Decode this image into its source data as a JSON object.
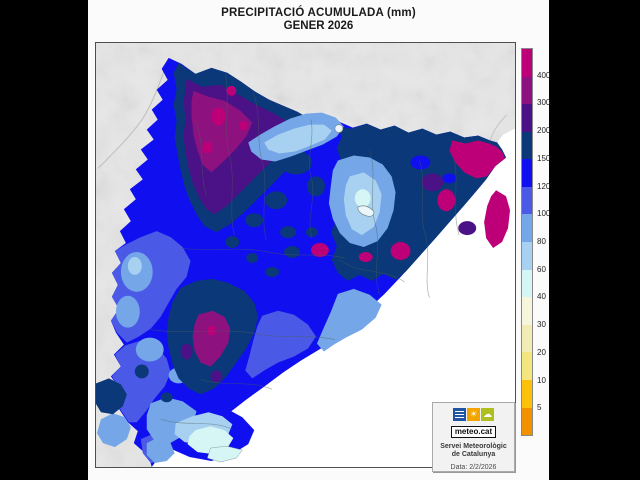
{
  "window": {
    "bg": "#000000",
    "page_bg": "#FBFBFB"
  },
  "title": {
    "line1": "PRECIPITACIÓ ACUMULADA (mm)",
    "line2": "GENER 2026"
  },
  "map": {
    "frame_color": "#4f4f4f",
    "terrain_color": "#E7E7E7",
    "sea_color": "#FFFFFF",
    "admin_border_color": "#4E5E58"
  },
  "legend": {
    "labels": [
      "400",
      "300",
      "200",
      "150",
      "120",
      "100",
      "80",
      "60",
      "40",
      "30",
      "20",
      "10",
      "5"
    ],
    "colors": [
      "#BE0078",
      "#8E1180",
      "#4B1186",
      "#0A3878",
      "#0F0FF0",
      "#4A5AE6",
      "#74A6E8",
      "#A8D0F0",
      "#D5F6F4",
      "#F6F6DC",
      "#F0ECB4",
      "#F4E67E",
      "#FCC108",
      "#F29200"
    ]
  },
  "branding": {
    "logo_text": "meteo.cat",
    "org_line1": "Servei Meteorològic",
    "org_line2": "de Catalunya",
    "date": "Data: 2/2/2026",
    "logo_squares": [
      {
        "icon": "menu-bars-icon",
        "color": "#2055A4",
        "glyph": ""
      },
      {
        "icon": "sun-icon",
        "color": "#F2A400",
        "glyph": "☀"
      },
      {
        "icon": "cloud-icon",
        "color": "#AFC01E",
        "glyph": "☁"
      }
    ]
  }
}
